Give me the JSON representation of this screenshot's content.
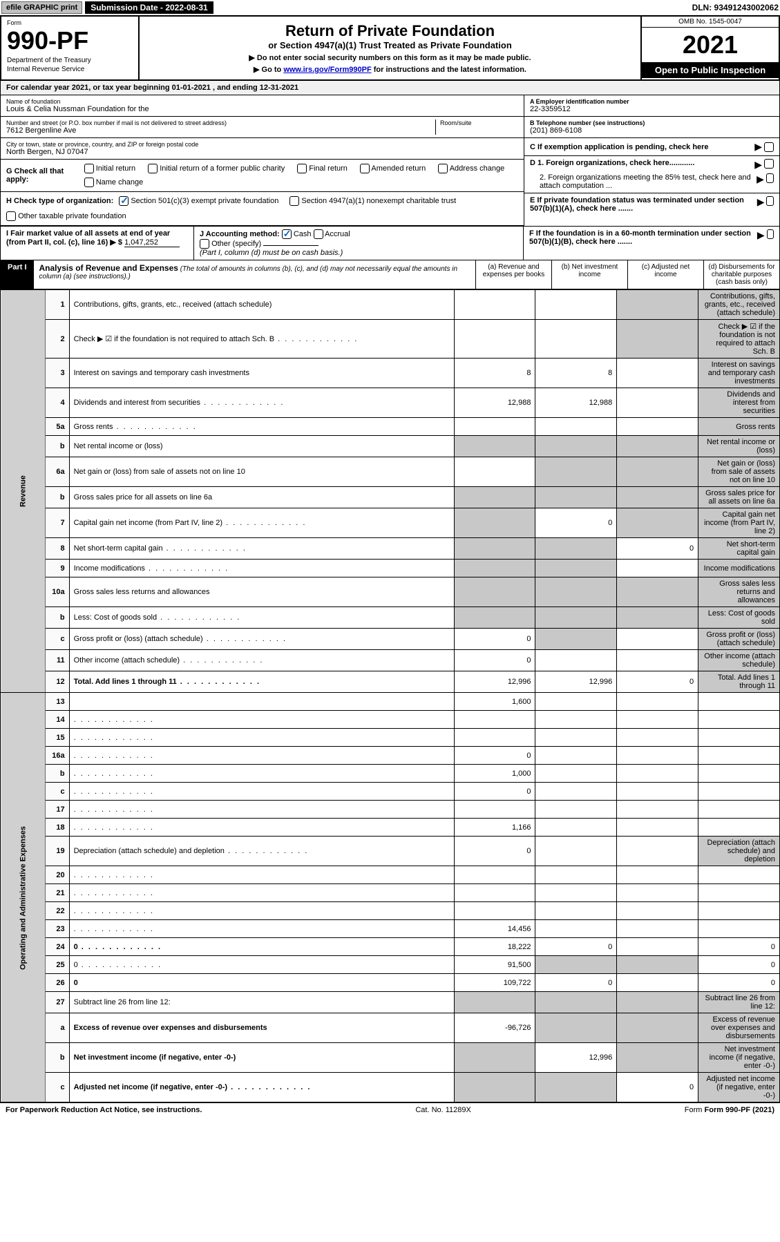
{
  "topbar": {
    "efile": "efile GRAPHIC print",
    "submission_label": "Submission Date - 2022-08-31",
    "dln": "DLN: 93491243002062"
  },
  "header": {
    "form_word": "Form",
    "form_num": "990-PF",
    "dept1": "Department of the Treasury",
    "dept2": "Internal Revenue Service",
    "title": "Return of Private Foundation",
    "subtitle": "or Section 4947(a)(1) Trust Treated as Private Foundation",
    "instr1": "▶ Do not enter social security numbers on this form as it may be made public.",
    "instr2_pre": "▶ Go to ",
    "instr2_link": "www.irs.gov/Form990PF",
    "instr2_post": " for instructions and the latest information.",
    "omb": "OMB No. 1545-0047",
    "year": "2021",
    "open": "Open to Public Inspection"
  },
  "calyear": "For calendar year 2021, or tax year beginning 01-01-2021            , and ending 12-31-2021",
  "info": {
    "name_label": "Name of foundation",
    "name": "Louis & Celia Nussman Foundation for the",
    "addr_label": "Number and street (or P.O. box number if mail is not delivered to street address)",
    "addr": "7612 Bergenline Ave",
    "room_label": "Room/suite",
    "city_label": "City or town, state or province, country, and ZIP or foreign postal code",
    "city": "North Bergen, NJ  07047",
    "a_label": "A Employer identification number",
    "a_val": "22-3359512",
    "b_label": "B Telephone number (see instructions)",
    "b_val": "(201) 869-6108",
    "c_label": "C If exemption application is pending, check here",
    "d1": "D 1. Foreign organizations, check here............",
    "d2": "2. Foreign organizations meeting the 85% test, check here and attach computation ...",
    "e": "E  If private foundation status was terminated under section 507(b)(1)(A), check here .......",
    "f": "F  If the foundation is in a 60-month termination under section 507(b)(1)(B), check here .......",
    "g_label": "G Check all that apply:",
    "g_opts": [
      "Initial return",
      "Initial return of a former public charity",
      "Final return",
      "Amended return",
      "Address change",
      "Name change"
    ],
    "h_label": "H Check type of organization:",
    "h_opts": [
      "Section 501(c)(3) exempt private foundation",
      "Section 4947(a)(1) nonexempt charitable trust",
      "Other taxable private foundation"
    ],
    "i_label": "I Fair market value of all assets at end of year (from Part II, col. (c), line 16) ▶ $ ",
    "i_val": "1,047,252",
    "j_label": "J Accounting method:",
    "j_opts": [
      "Cash",
      "Accrual",
      "Other (specify)"
    ],
    "j_note": "(Part I, column (d) must be on cash basis.)"
  },
  "part1": {
    "badge": "Part I",
    "title": "Analysis of Revenue and Expenses",
    "note": " (The total of amounts in columns (b), (c), and (d) may not necessarily equal the amounts in column (a) (see instructions).)",
    "col_a": "(a)   Revenue and expenses per books",
    "col_b": "(b)   Net investment income",
    "col_c": "(c)   Adjusted net income",
    "col_d": "(d)   Disbursements for charitable purposes (cash basis only)"
  },
  "sides": {
    "rev": "Revenue",
    "exp": "Operating and Administrative Expenses"
  },
  "rows": [
    {
      "n": "1",
      "d": "Contributions, gifts, grants, etc., received (attach schedule)",
      "a": "",
      "b": "",
      "c": "",
      "cs": true,
      "ds": true
    },
    {
      "n": "2",
      "d": "Check ▶ ☑ if the foundation is not required to attach Sch. B",
      "dots": true,
      "a": "",
      "b": "",
      "c": "",
      "cs": true,
      "ds": true
    },
    {
      "n": "3",
      "d": "Interest on savings and temporary cash investments",
      "a": "8",
      "b": "8",
      "c": "",
      "ds": true
    },
    {
      "n": "4",
      "d": "Dividends and interest from securities",
      "dots": true,
      "a": "12,988",
      "b": "12,988",
      "c": "",
      "ds": true
    },
    {
      "n": "5a",
      "d": "Gross rents",
      "dots": true,
      "a": "",
      "b": "",
      "c": "",
      "ds": true
    },
    {
      "n": "b",
      "d": "Net rental income or (loss)",
      "as": true,
      "bs": true,
      "cs": true,
      "ds": true
    },
    {
      "n": "6a",
      "d": "Net gain or (loss) from sale of assets not on line 10",
      "a": "",
      "bs": true,
      "cs": true,
      "ds": true
    },
    {
      "n": "b",
      "d": "Gross sales price for all assets on line 6a",
      "as": true,
      "bs": true,
      "cs": true,
      "ds": true
    },
    {
      "n": "7",
      "d": "Capital gain net income (from Part IV, line 2)",
      "dots": true,
      "as": true,
      "b": "0",
      "cs": true,
      "ds": true
    },
    {
      "n": "8",
      "d": "Net short-term capital gain",
      "dots": true,
      "as": true,
      "bs": true,
      "c": "0",
      "ds": true
    },
    {
      "n": "9",
      "d": "Income modifications",
      "dots": true,
      "as": true,
      "bs": true,
      "c": "",
      "ds": true
    },
    {
      "n": "10a",
      "d": "Gross sales less returns and allowances",
      "as": true,
      "bs": true,
      "cs": true,
      "ds": true
    },
    {
      "n": "b",
      "d": "Less: Cost of goods sold",
      "dots": true,
      "as": true,
      "bs": true,
      "cs": true,
      "ds": true
    },
    {
      "n": "c",
      "d": "Gross profit or (loss) (attach schedule)",
      "dots": true,
      "a": "0",
      "bs": true,
      "c": "",
      "ds": true
    },
    {
      "n": "11",
      "d": "Other income (attach schedule)",
      "dots": true,
      "a": "0",
      "b": "",
      "c": "",
      "ds": true
    },
    {
      "n": "12",
      "d": "Total. Add lines 1 through 11",
      "dots": true,
      "bold": true,
      "a": "12,996",
      "b": "12,996",
      "c": "0",
      "ds": true
    },
    {
      "n": "13",
      "d": "",
      "a": "1,600",
      "b": "",
      "c": ""
    },
    {
      "n": "14",
      "d": "",
      "dots": true,
      "a": "",
      "b": "",
      "c": ""
    },
    {
      "n": "15",
      "d": "",
      "dots": true,
      "a": "",
      "b": "",
      "c": ""
    },
    {
      "n": "16a",
      "d": "",
      "dots": true,
      "a": "0",
      "b": "",
      "c": ""
    },
    {
      "n": "b",
      "d": "",
      "dots": true,
      "a": "1,000",
      "b": "",
      "c": ""
    },
    {
      "n": "c",
      "d": "",
      "dots": true,
      "a": "0",
      "b": "",
      "c": ""
    },
    {
      "n": "17",
      "d": "",
      "dots": true,
      "a": "",
      "b": "",
      "c": ""
    },
    {
      "n": "18",
      "d": "",
      "dots": true,
      "a": "1,166",
      "b": "",
      "c": ""
    },
    {
      "n": "19",
      "d": "Depreciation (attach schedule) and depletion",
      "dots": true,
      "a": "0",
      "b": "",
      "c": "",
      "ds": true
    },
    {
      "n": "20",
      "d": "",
      "dots": true,
      "a": "",
      "b": "",
      "c": ""
    },
    {
      "n": "21",
      "d": "",
      "dots": true,
      "a": "",
      "b": "",
      "c": ""
    },
    {
      "n": "22",
      "d": "",
      "dots": true,
      "a": "",
      "b": "",
      "c": ""
    },
    {
      "n": "23",
      "d": "",
      "dots": true,
      "a": "14,456",
      "b": "",
      "c": ""
    },
    {
      "n": "24",
      "d": "0",
      "dots": true,
      "bold": true,
      "a": "18,222",
      "b": "0",
      "c": ""
    },
    {
      "n": "25",
      "d": "0",
      "dots": true,
      "a": "91,500",
      "bs": true,
      "cs": true
    },
    {
      "n": "26",
      "d": "0",
      "bold": true,
      "a": "109,722",
      "b": "0",
      "c": ""
    },
    {
      "n": "27",
      "d": "Subtract line 26 from line 12:",
      "as": true,
      "bs": true,
      "cs": true,
      "ds": true
    },
    {
      "n": "a",
      "d": "Excess of revenue over expenses and disbursements",
      "bold": true,
      "a": "-96,726",
      "bs": true,
      "cs": true,
      "ds": true
    },
    {
      "n": "b",
      "d": "Net investment income (if negative, enter -0-)",
      "bold": true,
      "as": true,
      "b": "12,996",
      "cs": true,
      "ds": true
    },
    {
      "n": "c",
      "d": "Adjusted net income (if negative, enter -0-)",
      "dots": true,
      "bold": true,
      "as": true,
      "bs": true,
      "c": "0",
      "ds": true
    }
  ],
  "footer": {
    "left": "For Paperwork Reduction Act Notice, see instructions.",
    "mid": "Cat. No. 11289X",
    "right": "Form 990-PF (2021)"
  }
}
